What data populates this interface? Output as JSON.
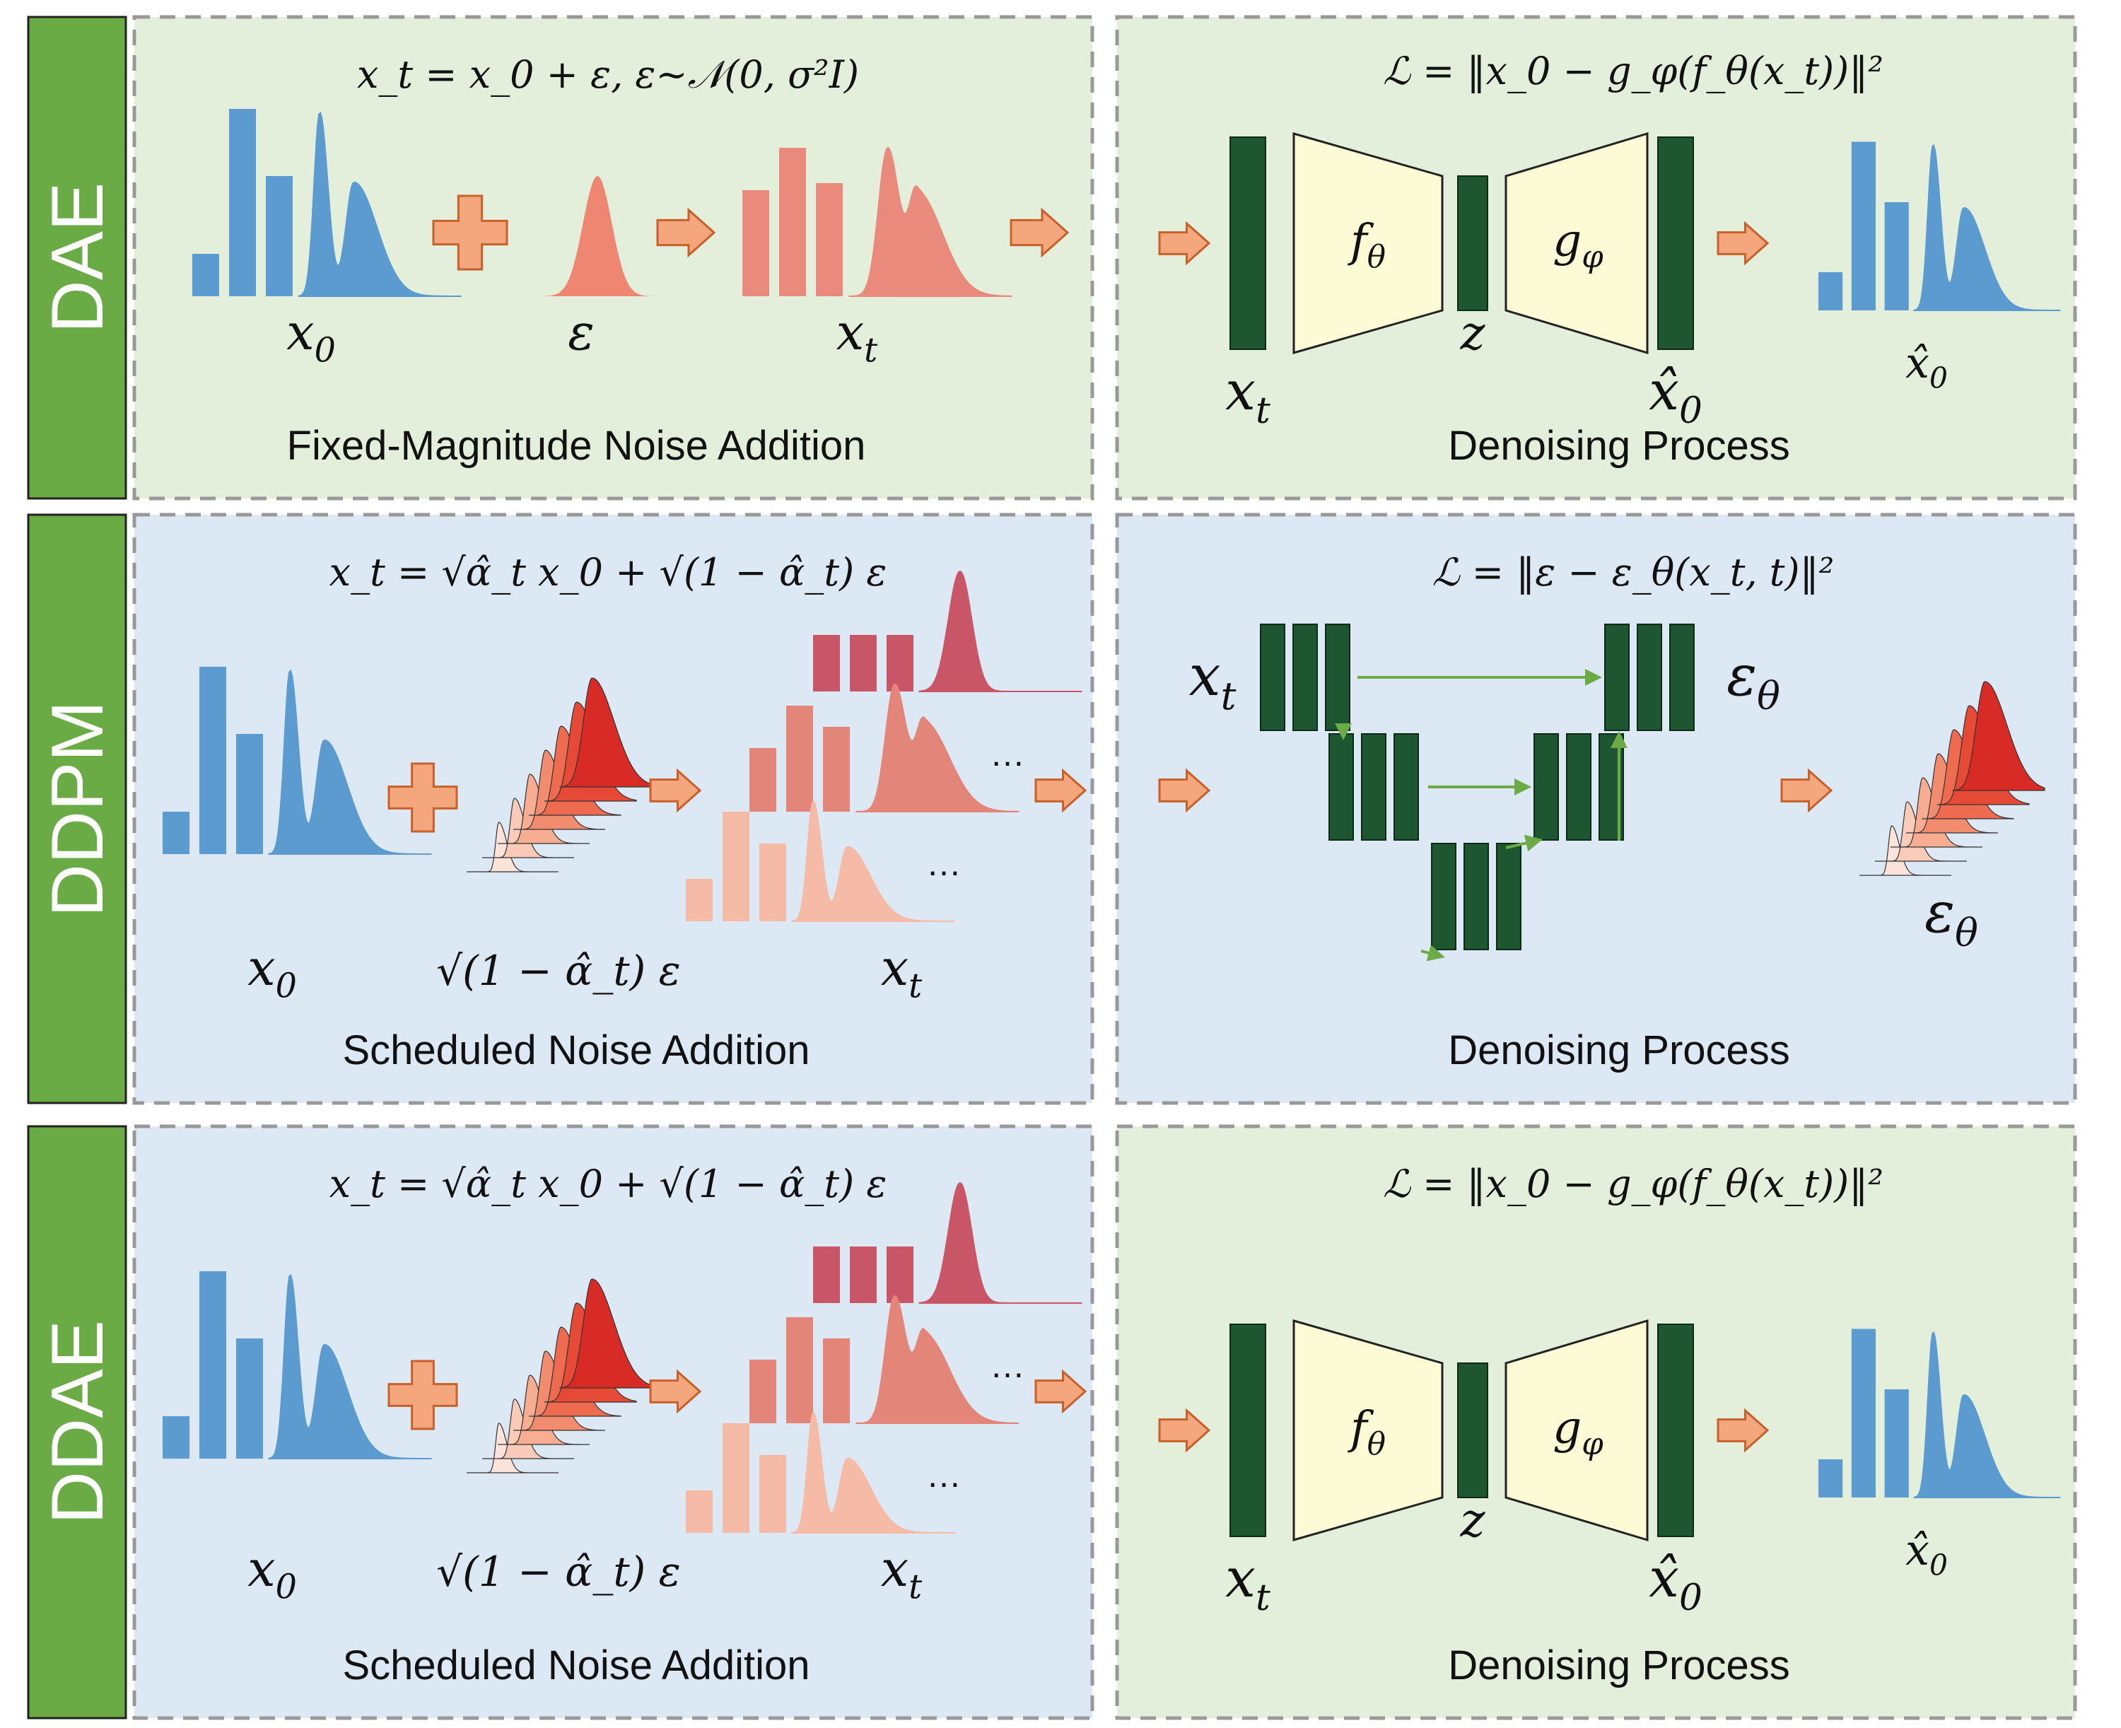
{
  "colors": {
    "green_panel": "#e3efda",
    "blue_panel": "#dde8f5",
    "side_bar": "#6aab46",
    "block": "#1e5631",
    "trapezoid": "#fdfbd6",
    "arrow": "#f4a77c",
    "arrow_stroke": "#c8602a",
    "clean_signal": "#5b9bd0",
    "noise": "#ef8672",
    "skip_arrow": "#6aab46"
  },
  "rows": [
    {
      "label": "DAE",
      "noise": {
        "formula": "x_t = x_0 + ε,   ε~𝒩(0, σ²I)",
        "labels": {
          "clean": "x_0",
          "noise": "ε",
          "noisy": "x_t"
        },
        "caption": "Fixed-Magnitude Noise Addition"
      },
      "denoise": {
        "formula": "ℒ = ‖x_0 − g_φ(f_θ(x_t))‖²",
        "encoder": "f_θ",
        "decoder": "g_φ",
        "input": "x_t",
        "latent": "z",
        "recon": "x̂_0",
        "output": "x̂_0",
        "caption": "Denoising Process"
      }
    },
    {
      "label": "DDPM",
      "noise": {
        "formula": "x_t = √α̂_t x_0 + √(1 − α̂_t) ε",
        "labels": {
          "clean": "x_0",
          "noise": "√(1 − α̂_t) ε",
          "noisy": "x_t"
        },
        "ellipsis": "…",
        "caption": "Scheduled Noise Addition"
      },
      "denoise": {
        "formula": "ℒ = ‖ε − ε_θ(x_t, t)‖²",
        "input": "x_t",
        "unet_out": "ε_θ",
        "output": "ε_θ",
        "caption": "Denoising Process"
      }
    },
    {
      "label": "DDAE",
      "noise": {
        "formula": "x_t = √α̂_t x_0 + √(1 − α̂_t) ε",
        "labels": {
          "clean": "x_0",
          "noise": "√(1 − α̂_t) ε",
          "noisy": "x_t"
        },
        "ellipsis": "…",
        "caption": "Scheduled Noise Addition"
      },
      "denoise": {
        "formula": "ℒ = ‖x_0 − g_φ(f_θ(x_t))‖²",
        "encoder": "f_θ",
        "decoder": "g_φ",
        "input": "x_t",
        "latent": "z",
        "recon": "x̂_0",
        "output": "x̂_0",
        "caption": "Denoising Process"
      }
    }
  ]
}
